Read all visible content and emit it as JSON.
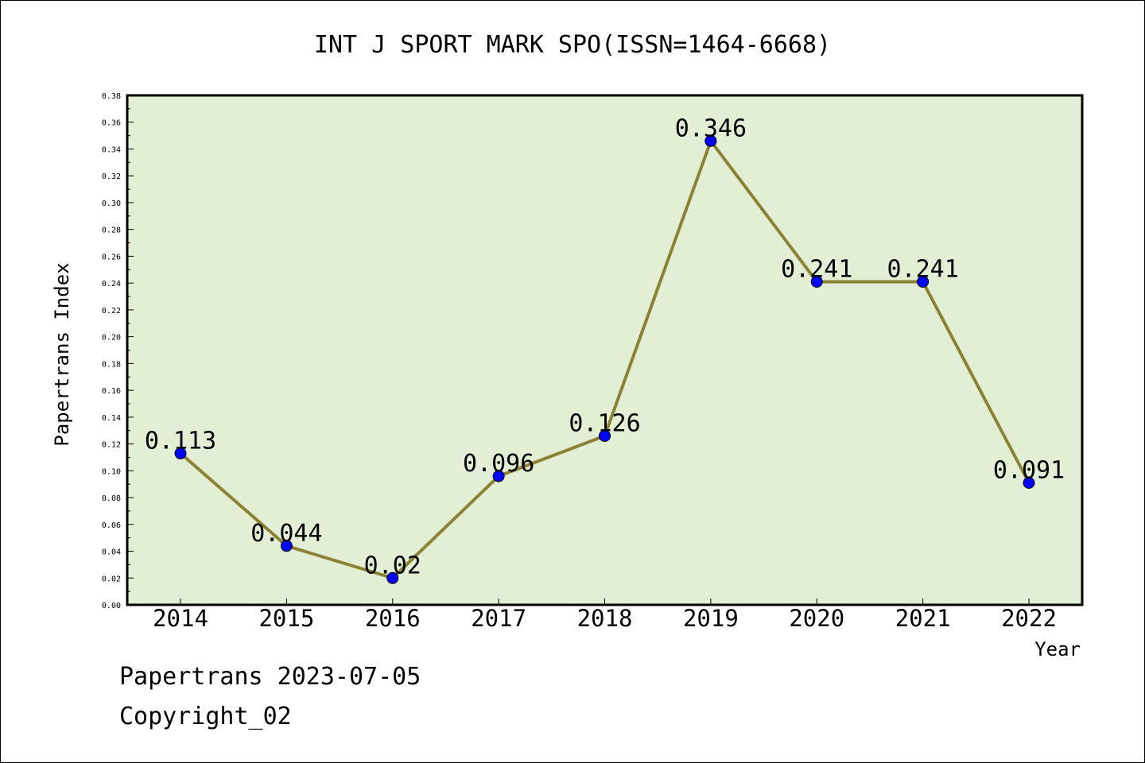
{
  "footer": {
    "line1": "Papertrans 2023-07-05",
    "line2": "Copyright_02"
  },
  "chart_data": {
    "type": "line",
    "title": "INT J SPORT MARK SPO(ISSN=1464-6668)",
    "xlabel": "Year",
    "ylabel": "Papertrans Index",
    "categories": [
      "2014",
      "2015",
      "2016",
      "2017",
      "2018",
      "2019",
      "2020",
      "2021",
      "2022"
    ],
    "series": [
      {
        "values": [
          0.113,
          0.044,
          0.02,
          0.096,
          0.126,
          0.346,
          0.241,
          0.241,
          0.091
        ],
        "labels": [
          "0.113",
          "0.044",
          "0.02",
          "0.096",
          "0.126",
          "0.346",
          "0.241",
          "0.241",
          "0.091"
        ]
      }
    ],
    "ylim": [
      0,
      0.38
    ],
    "yticks": [
      "0.00",
      "0.02",
      "0.04",
      "0.06",
      "0.08",
      "0.10",
      "0.12",
      "0.14",
      "0.16",
      "0.18",
      "0.20",
      "0.22",
      "0.24",
      "0.26",
      "0.28",
      "0.30",
      "0.32",
      "0.34",
      "0.36",
      "0.38"
    ],
    "grid": false,
    "colors": {
      "plot_background": "#e2efd5",
      "line": "#8b8236",
      "marker": "#0000ff"
    }
  }
}
